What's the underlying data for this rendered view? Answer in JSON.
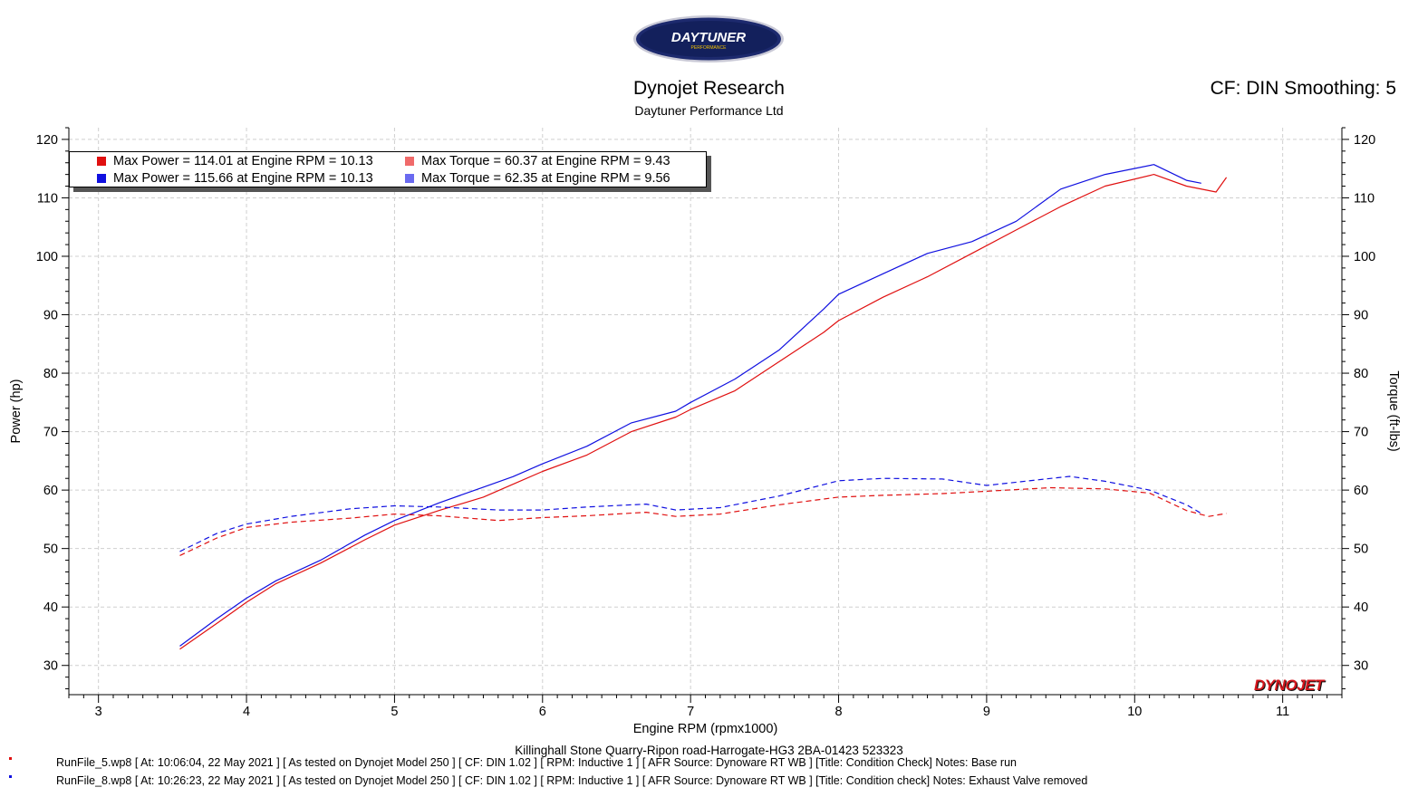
{
  "logo": {
    "text": "DAYTUNER",
    "subtext": "PERFORMANCE"
  },
  "header": {
    "title": "Dynojet Research",
    "subtitle": "Daytuner Performance Ltd",
    "settings": "CF: DIN Smoothing: 5"
  },
  "legend": [
    {
      "label": "Max Power = 114.01 at Engine RPM = 10.13",
      "color": "#e01010"
    },
    {
      "label": "Max Torque = 60.37 at Engine RPM = 9.43",
      "color": "#f06a6a"
    },
    {
      "label": "Max Power = 115.66 at Engine RPM = 10.13",
      "color": "#1010e0"
    },
    {
      "label": "Max Torque = 62.35 at Engine RPM = 9.56",
      "color": "#6a6af0"
    }
  ],
  "brand": "DYNOJET",
  "footer": {
    "location": "Killinghall Stone Quarry-Ripon road-Harrogate-HG3  2BA-01423  523323",
    "runs": [
      {
        "text": "RunFile_5.wp8 [ At: 10:06:04, 22 May 2021 ] [ As tested on Dynojet Model 250 ] [ CF: DIN 1.02 ] [ RPM: Inductive 1 ] [ AFR Source: Dynoware RT WB ] [Title: Condition Check]  Notes: Base run",
        "color": "#e01010"
      },
      {
        "text": "RunFile_8.wp8 [ At: 10:26:23, 22 May 2021 ] [ As tested on Dynojet Model 250 ] [ CF: DIN 1.02 ] [ RPM: Inductive 1 ] [ AFR Source: Dynoware RT WB ] [Title: Condition check]  Notes: Exhaust Valve removed",
        "color": "#1010e0"
      }
    ]
  },
  "chart_data": {
    "type": "line",
    "xlabel": "Engine RPM (rpmx1000)",
    "ylabel": "Power (hp)",
    "y2label": "Torque (ft-lbs)",
    "xlim": [
      2.8,
      11.4
    ],
    "ylim": [
      25,
      122
    ],
    "xticks": [
      3,
      4,
      5,
      6,
      7,
      8,
      9,
      10,
      11
    ],
    "yticks": [
      30,
      40,
      50,
      60,
      70,
      80,
      90,
      100,
      110,
      120
    ],
    "grid": true,
    "series": [
      {
        "name": "RunFile_5 Power",
        "color": "#e01010",
        "dash": false,
        "points": [
          [
            3.55,
            32.8
          ],
          [
            3.8,
            37.2
          ],
          [
            4.0,
            40.8
          ],
          [
            4.2,
            44.0
          ],
          [
            4.5,
            47.5
          ],
          [
            4.8,
            51.5
          ],
          [
            5.0,
            54.0
          ],
          [
            5.3,
            56.5
          ],
          [
            5.6,
            58.8
          ],
          [
            5.8,
            61.0
          ],
          [
            6.0,
            63.2
          ],
          [
            6.3,
            66.0
          ],
          [
            6.6,
            70.0
          ],
          [
            6.9,
            72.5
          ],
          [
            7.0,
            73.8
          ],
          [
            7.3,
            77.0
          ],
          [
            7.6,
            82.0
          ],
          [
            7.9,
            87.0
          ],
          [
            8.0,
            89.0
          ],
          [
            8.3,
            93.0
          ],
          [
            8.6,
            96.5
          ],
          [
            8.9,
            100.5
          ],
          [
            9.2,
            104.5
          ],
          [
            9.5,
            108.5
          ],
          [
            9.8,
            112.0
          ],
          [
            10.13,
            114.0
          ],
          [
            10.35,
            112.0
          ],
          [
            10.55,
            111.0
          ],
          [
            10.62,
            113.5
          ]
        ]
      },
      {
        "name": "RunFile_8 Power",
        "color": "#1010e0",
        "dash": false,
        "points": [
          [
            3.55,
            33.3
          ],
          [
            3.8,
            38.0
          ],
          [
            4.0,
            41.5
          ],
          [
            4.2,
            44.5
          ],
          [
            4.5,
            48.0
          ],
          [
            4.8,
            52.3
          ],
          [
            5.0,
            54.8
          ],
          [
            5.3,
            57.8
          ],
          [
            5.6,
            60.5
          ],
          [
            5.8,
            62.3
          ],
          [
            6.0,
            64.5
          ],
          [
            6.3,
            67.5
          ],
          [
            6.6,
            71.5
          ],
          [
            6.9,
            73.5
          ],
          [
            7.0,
            75.0
          ],
          [
            7.3,
            79.0
          ],
          [
            7.6,
            84.0
          ],
          [
            7.9,
            91.0
          ],
          [
            8.0,
            93.5
          ],
          [
            8.3,
            97.0
          ],
          [
            8.6,
            100.5
          ],
          [
            8.9,
            102.5
          ],
          [
            9.2,
            106.0
          ],
          [
            9.5,
            111.5
          ],
          [
            9.8,
            114.0
          ],
          [
            10.13,
            115.7
          ],
          [
            10.35,
            113.0
          ],
          [
            10.45,
            112.5
          ]
        ]
      },
      {
        "name": "RunFile_5 Torque",
        "color": "#e01010",
        "dash": true,
        "points": [
          [
            3.55,
            48.8
          ],
          [
            3.8,
            51.8
          ],
          [
            4.0,
            53.6
          ],
          [
            4.3,
            54.5
          ],
          [
            4.7,
            55.2
          ],
          [
            5.0,
            55.9
          ],
          [
            5.3,
            55.6
          ],
          [
            5.7,
            54.8
          ],
          [
            6.0,
            55.3
          ],
          [
            6.3,
            55.6
          ],
          [
            6.7,
            56.2
          ],
          [
            6.9,
            55.5
          ],
          [
            7.2,
            55.9
          ],
          [
            7.6,
            57.5
          ],
          [
            8.0,
            58.8
          ],
          [
            8.3,
            59.1
          ],
          [
            8.7,
            59.4
          ],
          [
            9.0,
            59.8
          ],
          [
            9.43,
            60.4
          ],
          [
            9.8,
            60.2
          ],
          [
            10.1,
            59.5
          ],
          [
            10.35,
            56.5
          ],
          [
            10.5,
            55.5
          ],
          [
            10.62,
            56.0
          ]
        ]
      },
      {
        "name": "RunFile_8 Torque",
        "color": "#1010e0",
        "dash": true,
        "points": [
          [
            3.55,
            49.5
          ],
          [
            3.8,
            52.6
          ],
          [
            4.0,
            54.2
          ],
          [
            4.3,
            55.5
          ],
          [
            4.7,
            56.8
          ],
          [
            5.0,
            57.3
          ],
          [
            5.3,
            57.1
          ],
          [
            5.7,
            56.6
          ],
          [
            6.0,
            56.6
          ],
          [
            6.3,
            57.1
          ],
          [
            6.7,
            57.6
          ],
          [
            6.9,
            56.6
          ],
          [
            7.2,
            57.0
          ],
          [
            7.6,
            59.0
          ],
          [
            8.0,
            61.6
          ],
          [
            8.3,
            62.0
          ],
          [
            8.7,
            61.9
          ],
          [
            9.0,
            60.8
          ],
          [
            9.56,
            62.35
          ],
          [
            9.8,
            61.5
          ],
          [
            10.1,
            60.0
          ],
          [
            10.35,
            57.5
          ],
          [
            10.45,
            56.0
          ]
        ]
      }
    ]
  }
}
